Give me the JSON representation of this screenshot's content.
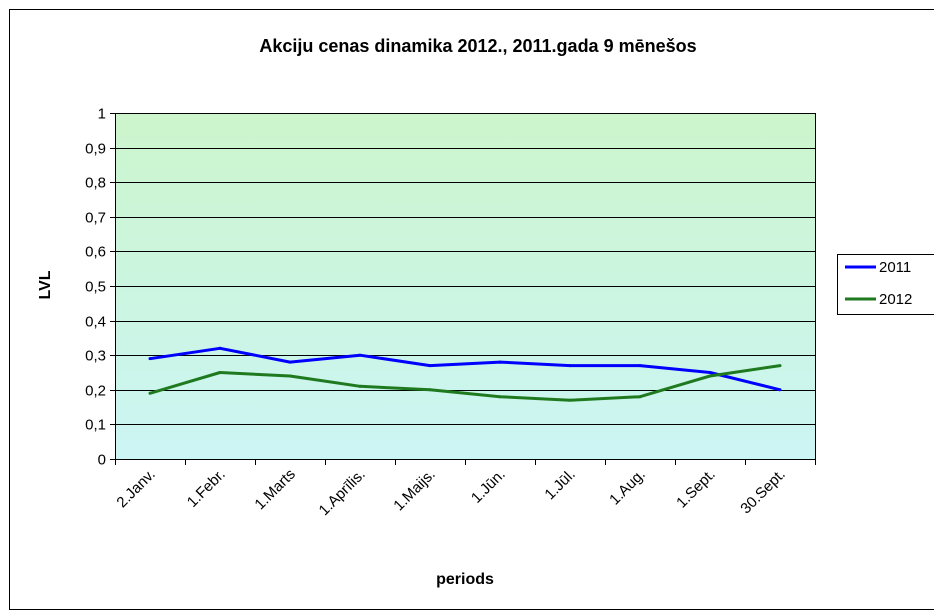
{
  "chart_data": {
    "type": "line",
    "title": "Akciju cenas dinamika 2012., 2011.gada 9 mēnešos",
    "xlabel": "periods",
    "ylabel": "LVL",
    "categories": [
      "2.Janv.",
      "1.Febr.",
      "1.Marts",
      "1.Aprīlis.",
      "1.Maijs.",
      "1.Jūn.",
      "1.Jūl.",
      "1.Aug.",
      "1.Sept.",
      "30.Sept."
    ],
    "ylim": [
      0,
      1
    ],
    "yticks": [
      "0",
      "0,1",
      "0,2",
      "0,3",
      "0,4",
      "0,5",
      "0,6",
      "0,7",
      "0,8",
      "0,9",
      "1"
    ],
    "grid": true,
    "legend_position": "right",
    "series": [
      {
        "name": "2011",
        "color": "#0000ff",
        "values": [
          0.29,
          0.32,
          0.28,
          0.3,
          0.27,
          0.28,
          0.27,
          0.27,
          0.25,
          0.2
        ]
      },
      {
        "name": "2012",
        "color": "#1f7a1f",
        "values": [
          0.19,
          0.25,
          0.24,
          0.21,
          0.2,
          0.18,
          0.17,
          0.18,
          0.24,
          0.27
        ]
      }
    ],
    "plot_background": {
      "top_color": "#ccf5cc",
      "bottom_color": "#ccf5f5"
    }
  }
}
